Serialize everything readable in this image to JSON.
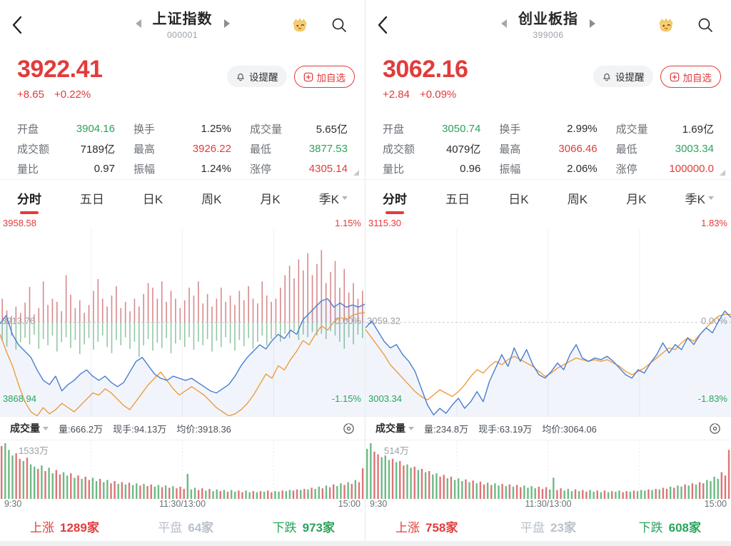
{
  "colors": {
    "up": "#e23b3b",
    "down": "#2aa35c",
    "flat": "#b9c0cb",
    "text": "#2b2b2b",
    "price_line": "#4a7dcf",
    "avg_line": "#ef9c3e",
    "tick_red": "#d6898c",
    "tick_green": "#93c6a4",
    "vol_red": "#dd7476",
    "vol_green": "#6cba84"
  },
  "tabs": {
    "items": [
      "分时",
      "五日",
      "日K",
      "周K",
      "月K",
      "季K"
    ],
    "active_index": 0
  },
  "buttons": {
    "alert": "设提醒",
    "add": "加自选"
  },
  "panels": [
    {
      "header": {
        "title": "上证指数",
        "code": "000001"
      },
      "quote": {
        "price": "3922.41",
        "change": "+8.65",
        "change_pct": "+0.22%"
      },
      "stats": [
        {
          "label": "开盘",
          "value": "3904.16",
          "type": "down"
        },
        {
          "label": "换手",
          "value": "1.25%",
          "type": "text"
        },
        {
          "label": "成交量",
          "value": "5.65亿",
          "type": "text"
        },
        {
          "label": "成交额",
          "value": "7189亿",
          "type": "text"
        },
        {
          "label": "最高",
          "value": "3926.22",
          "type": "up"
        },
        {
          "label": "最低",
          "value": "3877.53",
          "type": "down"
        },
        {
          "label": "量比",
          "value": "0.97",
          "type": "text"
        },
        {
          "label": "振幅",
          "value": "1.24%",
          "type": "text"
        },
        {
          "label": "涨停",
          "value": "4305.14",
          "type": "up"
        }
      ],
      "vol_row": {
        "name": "成交量",
        "info": [
          "量:666.2万",
          "现手:94.13万",
          "均价:3918.36"
        ]
      },
      "breadth": [
        {
          "label": "上涨",
          "value": "1289家",
          "type": "up"
        },
        {
          "label": "平盘",
          "value": "64家",
          "type": "flat"
        },
        {
          "label": "下跌",
          "value": "973家",
          "type": "down"
        }
      ]
    },
    {
      "header": {
        "title": "创业板指",
        "code": "399006"
      },
      "quote": {
        "price": "3062.16",
        "change": "+2.84",
        "change_pct": "+0.09%"
      },
      "stats": [
        {
          "label": "开盘",
          "value": "3050.74",
          "type": "down"
        },
        {
          "label": "换手",
          "value": "2.99%",
          "type": "text"
        },
        {
          "label": "成交量",
          "value": "1.69亿",
          "type": "text"
        },
        {
          "label": "成交额",
          "value": "4079亿",
          "type": "text"
        },
        {
          "label": "最高",
          "value": "3066.46",
          "type": "up"
        },
        {
          "label": "最低",
          "value": "3003.34",
          "type": "down"
        },
        {
          "label": "量比",
          "value": "0.96",
          "type": "text"
        },
        {
          "label": "振幅",
          "value": "2.06%",
          "type": "text"
        },
        {
          "label": "涨停",
          "value": "100000.0",
          "type": "up"
        }
      ],
      "vol_row": {
        "name": "成交量",
        "info": [
          "量:234.8万",
          "现手:63.19万",
          "均价:3064.06"
        ]
      },
      "breadth": [
        {
          "label": "上涨",
          "value": "758家",
          "type": "up"
        },
        {
          "label": "平盘",
          "value": "23家",
          "type": "flat"
        },
        {
          "label": "下跌",
          "value": "608家",
          "type": "down"
        }
      ]
    }
  ],
  "chart_data": [
    {
      "type": "line",
      "title": "上证指数 分时",
      "ylim": [
        3868.94,
        3958.58
      ],
      "mid": 3913.76,
      "labels": {
        "top_left": "3958.58",
        "top_right": "1.15%",
        "mid_left": "3913.76",
        "mid_right": "0.00%",
        "bottom_left": "3868.94",
        "bottom_right": "-1.15%"
      },
      "x_labels": [
        "9:30",
        "11:30/13:00",
        "15:00"
      ],
      "price": [
        3913,
        3917,
        3908,
        3903,
        3900,
        3897,
        3891,
        3886,
        3884,
        3888,
        3881,
        3884,
        3886,
        3889,
        3891,
        3888,
        3886,
        3888,
        3885,
        3883,
        3885,
        3890,
        3895,
        3897,
        3893,
        3889,
        3887,
        3886,
        3888,
        3887,
        3886,
        3887,
        3885,
        3883,
        3881,
        3880,
        3882,
        3884,
        3888,
        3893,
        3897,
        3900,
        3903,
        3901,
        3905,
        3908,
        3906,
        3910,
        3908,
        3915,
        3918,
        3921,
        3924,
        3925,
        3921,
        3923,
        3921,
        3922,
        3921,
        3922.41
      ],
      "avg": [
        3908,
        3900,
        3893,
        3884,
        3876,
        3871,
        3869,
        3873,
        3870,
        3872,
        3875,
        3873,
        3871,
        3874,
        3877,
        3880,
        3879,
        3882,
        3880,
        3877,
        3874,
        3872,
        3876,
        3880,
        3884,
        3887,
        3890,
        3886,
        3882,
        3879,
        3881,
        3883,
        3881,
        3879,
        3876,
        3873,
        3871,
        3869,
        3870,
        3872,
        3875,
        3879,
        3884,
        3889,
        3887,
        3893,
        3891,
        3896,
        3900,
        3905,
        3903,
        3908,
        3912,
        3910,
        3914,
        3916,
        3915,
        3917,
        3918,
        3918.36
      ],
      "ticks_red": [
        0.3,
        0.15,
        0.08,
        0.2,
        0.12,
        0.25,
        0.45,
        0.1,
        0.18,
        0.52,
        0.22,
        0.3,
        0.26,
        0.14,
        0.6,
        0.35,
        0.18,
        0.28,
        0.12,
        0.22,
        0.4,
        0.55,
        0.3,
        0.2,
        0.34,
        0.46,
        0.18,
        0.26,
        0.14,
        0.3,
        0.2,
        0.36,
        0.5,
        0.44,
        0.3,
        0.52,
        0.26,
        0.4,
        0.3,
        0.18,
        0.28,
        0.44,
        0.34,
        0.52,
        0.24,
        0.36,
        0.2,
        0.3,
        0.44,
        0.26,
        0.34,
        0.22,
        0.4,
        0.28,
        0.46,
        0.3,
        0.24,
        0.52,
        0.34,
        0.26,
        0.3,
        0.44,
        0.6,
        0.72,
        0.56,
        0.8,
        0.66,
        0.88,
        0.6,
        0.74,
        0.92,
        0.5,
        0.64,
        0.78,
        0.44,
        0.68,
        0.38,
        0.5,
        0.3,
        0.4
      ],
      "ticks_green": [
        0.4,
        0.55,
        0.3,
        0.62,
        0.45,
        0.35,
        0.5,
        0.28,
        0.6,
        0.38,
        0.52,
        0.3,
        0.66,
        0.45,
        0.34,
        0.58,
        0.4,
        0.72,
        0.5,
        0.36,
        0.62,
        0.44,
        0.3,
        0.56,
        0.7,
        0.4,
        0.52,
        0.34,
        0.6,
        0.44,
        0.78,
        0.52,
        0.38,
        0.64,
        0.46,
        0.58,
        0.36,
        0.7,
        0.48,
        0.4,
        0.56,
        0.34,
        0.62,
        0.44,
        0.52,
        0.38,
        0.66,
        0.42,
        0.56,
        0.34,
        0.48,
        0.64,
        0.4,
        0.54,
        0.36,
        0.6,
        0.44,
        0.3,
        0.52,
        0.38,
        0.3,
        0.44,
        0.26,
        0.36,
        0.2,
        0.4,
        0.28,
        0.34,
        0.22,
        0.3,
        0.26,
        0.38,
        0.2,
        0.3,
        0.44,
        0.6,
        0.34,
        0.5,
        0.28,
        0.36
      ],
      "volume": {
        "max_label": "1533万",
        "values": [
          95,
          100,
          88,
          78,
          82,
          72,
          68,
          74,
          62,
          58,
          54,
          60,
          50,
          56,
          46,
          52,
          44,
          48,
          42,
          46,
          38,
          42,
          36,
          40,
          34,
          38,
          32,
          36,
          30,
          34,
          28,
          32,
          27,
          30,
          26,
          29,
          25,
          28,
          24,
          27,
          23,
          26,
          22,
          25,
          21,
          24,
          20,
          23,
          19,
          22,
          18,
          45,
          17,
          20,
          16,
          19,
          15,
          18,
          14,
          17,
          14,
          16,
          13,
          16,
          13,
          15,
          12,
          15,
          12,
          14,
          12,
          14,
          13,
          15,
          12,
          14,
          13,
          15,
          14,
          16,
          15,
          17,
          16,
          18,
          17,
          20,
          18,
          22,
          19,
          24,
          21,
          26,
          23,
          28,
          25,
          30,
          27,
          34,
          30,
          55
        ],
        "colors": "rgggrrgrggrgrggrrggrgrgrrggrggrrgrgrggrgrrggrgrgrr"
      }
    },
    {
      "type": "line",
      "title": "创业板指 分时",
      "ylim": [
        3003.34,
        3115.3
      ],
      "mid": 3059.32,
      "labels": {
        "top_left": "3115.30",
        "top_right": "1.83%",
        "mid_left": "3059.32",
        "mid_right": "0.00%",
        "bottom_left": "3003.34",
        "bottom_right": "-1.83%"
      },
      "x_labels": [
        "9:30",
        "11:30/13:00",
        "15:00"
      ],
      "price": [
        3056,
        3060,
        3054,
        3048,
        3044,
        3046,
        3040,
        3036,
        3030,
        3020,
        3010,
        3004,
        3008,
        3005,
        3010,
        3014,
        3008,
        3012,
        3018,
        3012,
        3024,
        3032,
        3040,
        3033,
        3044,
        3036,
        3043,
        3034,
        3028,
        3026,
        3030,
        3035,
        3031,
        3040,
        3046,
        3038,
        3036,
        3038,
        3037,
        3039,
        3036,
        3032,
        3028,
        3026,
        3031,
        3029,
        3035,
        3040,
        3047,
        3041,
        3046,
        3043,
        3050,
        3046,
        3052,
        3056,
        3053,
        3060,
        3066,
        3062.16
      ],
      "avg": [
        3055,
        3050,
        3045,
        3040,
        3034,
        3030,
        3026,
        3022,
        3018,
        3015,
        3013,
        3016,
        3019,
        3017,
        3015,
        3018,
        3022,
        3027,
        3031,
        3029,
        3033,
        3036,
        3034,
        3037,
        3039,
        3037,
        3035,
        3033,
        3030,
        3027,
        3029,
        3032,
        3034,
        3036,
        3038,
        3037,
        3036,
        3037,
        3036,
        3037,
        3035,
        3033,
        3030,
        3028,
        3030,
        3032,
        3035,
        3038,
        3041,
        3044,
        3043,
        3047,
        3050,
        3048,
        3052,
        3056,
        3060,
        3063,
        3064,
        3064.06
      ],
      "ticks_red": [],
      "ticks_green": [],
      "volume": {
        "max_label": "514万",
        "values": [
          90,
          100,
          85,
          80,
          75,
          78,
          70,
          72,
          66,
          68,
          60,
          62,
          56,
          58,
          52,
          54,
          48,
          50,
          44,
          46,
          40,
          43,
          37,
          40,
          34,
          37,
          32,
          35,
          30,
          33,
          28,
          31,
          26,
          29,
          25,
          28,
          24,
          27,
          23,
          26,
          22,
          25,
          21,
          24,
          20,
          23,
          19,
          22,
          18,
          21,
          17,
          38,
          16,
          19,
          15,
          18,
          14,
          17,
          14,
          16,
          13,
          16,
          13,
          15,
          12,
          15,
          12,
          14,
          13,
          15,
          12,
          14,
          13,
          15,
          14,
          16,
          15,
          17,
          16,
          18,
          17,
          20,
          18,
          22,
          20,
          24,
          22,
          26,
          24,
          28,
          26,
          30,
          28,
          34,
          32,
          40,
          36,
          48,
          42,
          88
        ],
        "colors": "ggrrgggrgrrggrgrgrggrrgrgggrgrgrrgrggrgrgrrggggrrr"
      }
    }
  ]
}
